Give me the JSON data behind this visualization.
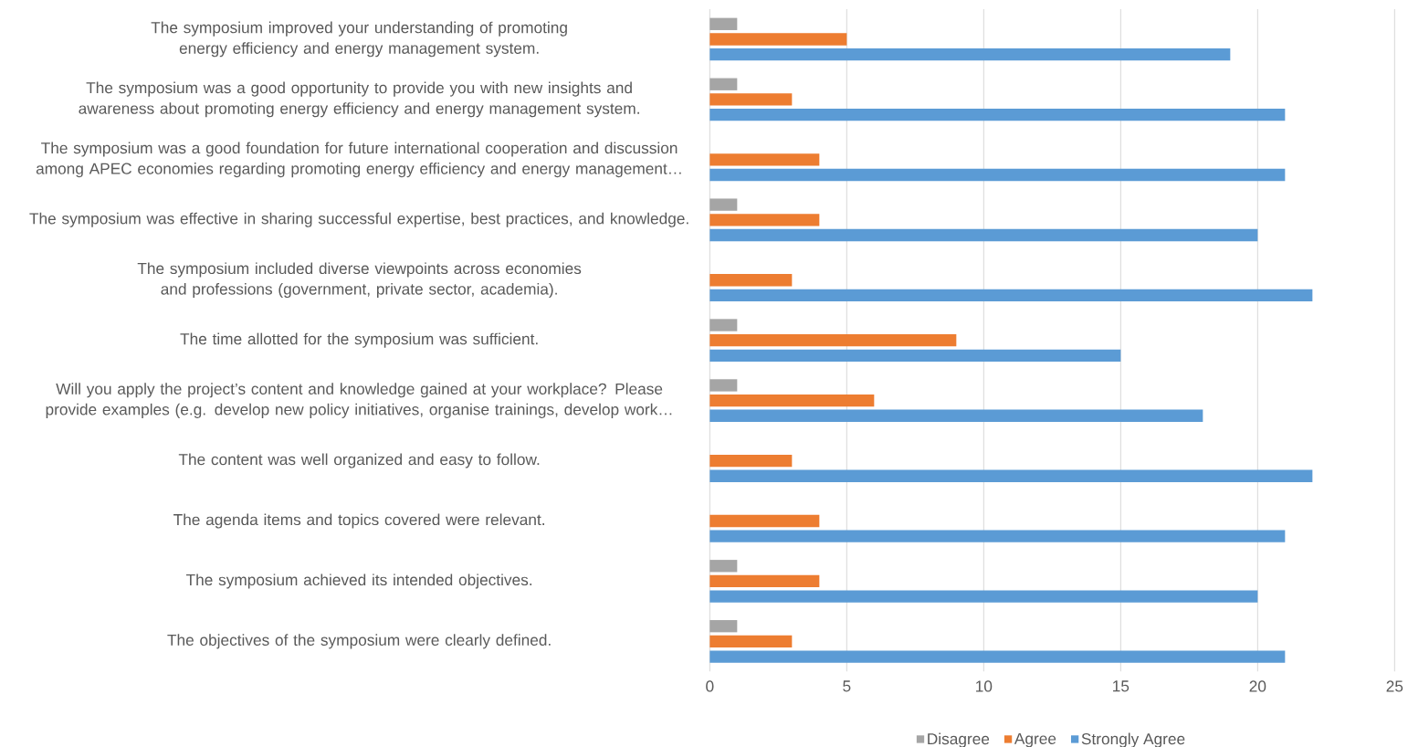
{
  "chart_data": {
    "type": "bar",
    "orientation": "horizontal",
    "categories": [
      "The symposium improved your understanding of promoting energy efficiency and energy management system.",
      "The symposium was a good opportunity to provide you with new insights and awareness about promoting energy efficiency and energy management system.",
      "The symposium was a good foundation for future international cooperation and discussion among APEC economies regarding promoting energy efficiency and energy management…",
      "The symposium was effective in sharing successful expertise, best practices, and knowledge.",
      "The symposium included diverse viewpoints across economies and professions (government, private sector, academia).",
      "The time allotted for the symposium was sufficient.",
      "Will you apply the project’s content and knowledge gained at your workplace? Please provide examples (e.g. develop new policy initiatives, organise trainings, develop work…",
      "The content was well organized and easy to follow.",
      "The agenda items and topics covered were relevant.",
      "The symposium achieved its intended objectives.",
      "The objectives of the symposium were clearly defined."
    ],
    "series": [
      {
        "name": "Disagree",
        "color": "#a5a5a5",
        "values": [
          1,
          1,
          null,
          1,
          null,
          1,
          1,
          null,
          null,
          1,
          1
        ]
      },
      {
        "name": "Agree",
        "color": "#ed7d31",
        "values": [
          5,
          3,
          4,
          4,
          3,
          9,
          6,
          3,
          4,
          4,
          3
        ]
      },
      {
        "name": "Strongly Agree",
        "color": "#5b9bd5",
        "values": [
          19,
          21,
          21,
          20,
          22,
          15,
          18,
          22,
          21,
          20,
          21
        ]
      }
    ],
    "xlim": [
      0,
      25
    ],
    "xticks": [
      0,
      5,
      10,
      15,
      20,
      25
    ],
    "grid": "x",
    "legend": "bottom"
  }
}
